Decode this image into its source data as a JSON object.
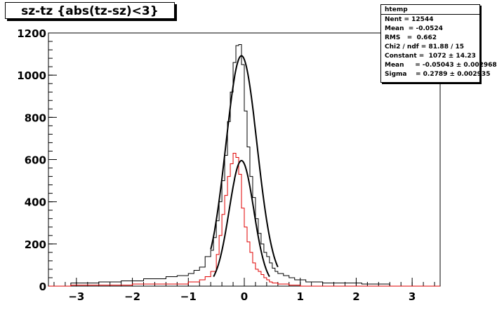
{
  "title": "sz-tz {abs(tz-sz)<3}",
  "stats": {
    "name": "htemp",
    "rows": [
      "Nent = 12544",
      "Mean  = -0.0524",
      "RMS   =  0.662",
      "Chi2 / ndf = 81.88 / 15",
      "Constant =  1072 ± 14.23",
      "Mean     = -0.05043 ± 0.002968",
      "Sigma    = 0.2789 ± 0.002935"
    ]
  },
  "colors": {
    "black_hist": "#000000",
    "red_hist": "#e00000",
    "fit": "#000000"
  },
  "chart_data": {
    "type": "histogram",
    "title": "sz-tz {abs(tz-sz)<3}",
    "xlim": [
      -3.5,
      3.5
    ],
    "ylim": [
      0,
      1200
    ],
    "xticks": [
      -3,
      -2,
      -1,
      0,
      1,
      2,
      3
    ],
    "yticks": [
      0,
      200,
      400,
      600,
      800,
      1000,
      1200
    ],
    "series": [
      {
        "color": "black",
        "bin_edges": [
          -3.5,
          -3.1,
          -2.6,
          -2.2,
          -1.8,
          -1.4,
          -1.2,
          -1.0,
          -0.9,
          -0.8,
          -0.7,
          -0.6,
          -0.55,
          -0.5,
          -0.45,
          -0.4,
          -0.35,
          -0.3,
          -0.25,
          -0.2,
          -0.15,
          -0.1,
          -0.05,
          0.0,
          0.05,
          0.1,
          0.15,
          0.2,
          0.25,
          0.3,
          0.35,
          0.4,
          0.45,
          0.5,
          0.55,
          0.6,
          0.7,
          0.8,
          0.9,
          1.1,
          1.4,
          1.7,
          2.1,
          2.6,
          3.1,
          3.5
        ],
        "values": [
          0,
          15,
          20,
          25,
          35,
          45,
          50,
          60,
          75,
          90,
          140,
          170,
          230,
          310,
          400,
          500,
          620,
          780,
          920,
          1060,
          1140,
          1145,
          1050,
          830,
          660,
          520,
          420,
          320,
          250,
          200,
          160,
          140,
          110,
          85,
          70,
          60,
          50,
          40,
          30,
          20,
          15,
          15,
          10,
          0,
          0
        ]
      },
      {
        "color": "red",
        "bin_edges": [
          -3.5,
          -3.1,
          -2.0,
          -1.0,
          -0.8,
          -0.7,
          -0.6,
          -0.5,
          -0.45,
          -0.4,
          -0.35,
          -0.3,
          -0.25,
          -0.2,
          -0.15,
          -0.1,
          -0.05,
          0.0,
          0.05,
          0.1,
          0.15,
          0.2,
          0.25,
          0.3,
          0.35,
          0.4,
          0.45,
          0.5,
          0.6,
          0.8,
          1.0,
          3.1,
          3.5
        ],
        "values": [
          0,
          5,
          10,
          20,
          30,
          45,
          70,
          150,
          240,
          340,
          430,
          520,
          580,
          630,
          610,
          530,
          370,
          280,
          210,
          160,
          110,
          80,
          70,
          55,
          40,
          30,
          20,
          15,
          10,
          5,
          0,
          0
        ]
      }
    ],
    "fits": [
      {
        "type": "gaussian",
        "constant": 1072,
        "mean": -0.05043,
        "sigma": 0.2789,
        "baseline": 20,
        "range": [
          -0.6,
          0.6
        ]
      },
      {
        "type": "gaussian",
        "constant": 595,
        "mean": -0.05,
        "sigma": 0.22,
        "baseline": 0,
        "range": [
          -0.55,
          0.45
        ]
      }
    ]
  }
}
